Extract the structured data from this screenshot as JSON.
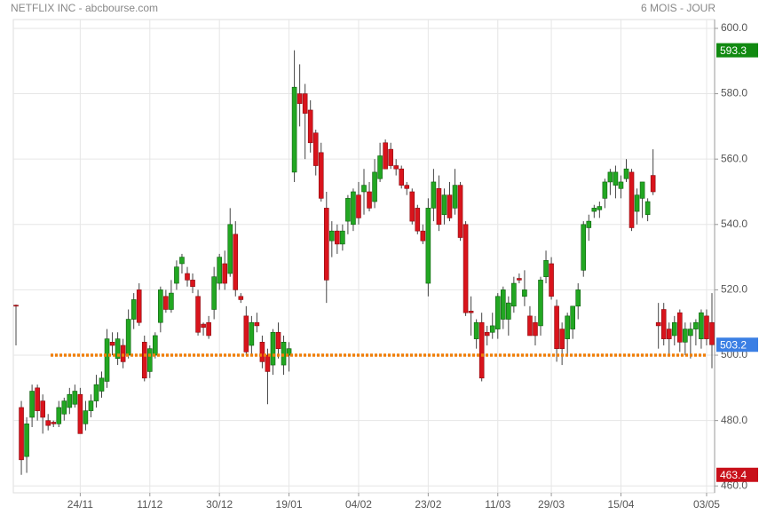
{
  "chart_data": {
    "type": "candlestick",
    "title": "NETFLIX INC - abcbourse.com",
    "subtitle": "6 MOIS - JOUR",
    "categories": [
      null,
      null,
      null,
      null,
      null,
      null,
      null,
      null,
      null,
      null,
      null,
      null,
      "24/11",
      null,
      null,
      null,
      null,
      null,
      null,
      null,
      null,
      null,
      null,
      null,
      null,
      "11/12",
      null,
      null,
      null,
      null,
      null,
      null,
      null,
      null,
      null,
      null,
      null,
      null,
      "30/12",
      null,
      null,
      null,
      null,
      null,
      null,
      null,
      null,
      null,
      null,
      null,
      null,
      "19/01",
      null,
      null,
      null,
      null,
      null,
      null,
      null,
      null,
      null,
      null,
      null,
      null,
      "04/02",
      null,
      null,
      null,
      null,
      null,
      null,
      null,
      null,
      null,
      null,
      null,
      null,
      "23/02",
      null,
      null,
      null,
      null,
      null,
      null,
      null,
      null,
      null,
      null,
      null,
      null,
      "11/03",
      null,
      null,
      null,
      null,
      null,
      null,
      null,
      null,
      null,
      "29/03",
      null,
      null,
      null,
      null,
      null,
      null,
      null,
      null,
      null,
      null,
      null,
      null,
      "15/04",
      null,
      null,
      null,
      null,
      null,
      null,
      null,
      null,
      null,
      null,
      null,
      null,
      null,
      null,
      null,
      "03/05",
      null
    ],
    "open": [
      515.3,
      484,
      469,
      481,
      490,
      486,
      480,
      479.5,
      479,
      482,
      484,
      485,
      488,
      479,
      483,
      486,
      489,
      492,
      504,
      499,
      503,
      500,
      511,
      520,
      504,
      495,
      500,
      510,
      518,
      514,
      522,
      528,
      525,
      523,
      518,
      509.5,
      510,
      514,
      522,
      528,
      525,
      537,
      518,
      512,
      503,
      510,
      504,
      500,
      497,
      507,
      497,
      500,
      556,
      580,
      580,
      575,
      568,
      562,
      545,
      535,
      538,
      534,
      541,
      540,
      549,
      550,
      550,
      547,
      554,
      565,
      563,
      558,
      557,
      552,
      550,
      545,
      538,
      522,
      545,
      551,
      543,
      549,
      545,
      552,
      540,
      513.5,
      505,
      510,
      507,
      507,
      508,
      511,
      511,
      515,
      523.5,
      518,
      512,
      510,
      509,
      524,
      528,
      515,
      508,
      505,
      508,
      515,
      526,
      539,
      544,
      544.5,
      548,
      553,
      552,
      551,
      554,
      556,
      544,
      548,
      543,
      555,
      510,
      514,
      508,
      506,
      513,
      504,
      506,
      508,
      505,
      512,
      510
    ],
    "high": [
      515.5,
      486,
      481,
      491,
      491,
      488,
      482,
      480,
      486,
      487,
      490,
      491,
      490,
      486,
      488,
      494,
      495,
      508,
      507,
      507,
      505,
      514,
      519,
      522,
      506,
      503,
      507,
      521,
      520,
      523,
      529,
      531,
      527,
      525,
      520,
      510,
      512,
      527,
      531,
      532,
      545,
      541,
      519,
      515,
      512,
      513,
      506,
      502,
      508,
      510,
      506,
      504,
      593.3,
      589,
      583,
      578,
      569,
      565,
      550,
      541,
      540,
      540,
      549,
      551,
      553,
      557,
      553,
      560,
      565,
      566,
      565,
      560,
      558,
      553,
      551,
      546,
      540,
      548,
      557,
      555,
      551,
      553,
      557,
      553,
      541,
      518,
      511,
      513,
      509,
      513,
      519,
      521,
      518,
      524,
      525,
      526,
      515,
      512,
      524,
      532,
      530,
      517,
      510,
      513,
      515,
      522,
      541,
      543,
      546,
      547,
      554,
      557,
      558,
      555,
      560,
      557,
      551,
      553,
      548,
      563,
      516,
      516,
      510,
      512,
      514,
      510,
      510,
      511,
      514,
      514,
      519
    ],
    "low": [
      503,
      463.4,
      464,
      478,
      480,
      476,
      477,
      478,
      478,
      480,
      482,
      484,
      476,
      477,
      481,
      484,
      487,
      490,
      500,
      497,
      496,
      499,
      508,
      509,
      492,
      493,
      499,
      507,
      513,
      513,
      520,
      525,
      521,
      519,
      506,
      506,
      505,
      511,
      520,
      520,
      524,
      518,
      516,
      500,
      500,
      507,
      496,
      485,
      494,
      499,
      494,
      495,
      553,
      570,
      560,
      562,
      555,
      547,
      516,
      530,
      531,
      532,
      537,
      538,
      540,
      543,
      544,
      545,
      553,
      557,
      557,
      555,
      551,
      549,
      540,
      537,
      534,
      518,
      541,
      538,
      540,
      541,
      543,
      535,
      512,
      506,
      502,
      492,
      503,
      505,
      505,
      508,
      506,
      513,
      522,
      515,
      506,
      503,
      506,
      522,
      517,
      498,
      497,
      500,
      505,
      511,
      524,
      535,
      542,
      542,
      545,
      549,
      548,
      548,
      553,
      538,
      540,
      542,
      541,
      549,
      502,
      503,
      500,
      503,
      501,
      500,
      499,
      503,
      502,
      503,
      496
    ],
    "close": [
      515,
      468,
      479,
      489,
      483,
      481,
      478.5,
      479,
      484,
      486,
      488,
      489,
      476,
      483,
      486,
      491,
      493,
      505,
      503,
      505,
      498,
      511,
      517,
      510,
      493,
      502,
      506,
      520,
      514,
      519,
      527,
      530,
      523,
      521,
      507,
      508.5,
      506,
      524,
      530,
      522,
      540,
      520,
      517,
      501,
      510,
      509,
      498,
      495,
      507,
      502,
      504,
      502,
      582,
      577,
      574,
      565,
      558,
      548,
      523,
      538,
      534,
      538,
      548,
      550,
      542,
      552,
      545,
      556,
      561,
      557,
      558,
      557,
      552,
      551,
      541,
      538,
      535,
      545,
      553,
      540,
      549,
      542,
      552,
      536,
      513,
      513,
      510,
      493,
      506,
      509,
      518,
      520,
      516,
      522,
      523,
      520,
      506,
      506,
      523,
      529,
      518,
      502,
      502,
      512,
      515,
      520,
      540,
      541,
      545,
      545.5,
      553,
      556,
      556,
      553,
      557,
      539,
      549,
      553,
      547,
      550,
      509,
      505,
      505,
      510,
      504,
      508,
      508,
      510,
      513,
      505,
      503.2
    ],
    "up_color": "#22a722",
    "down_color": "#d9141c",
    "ylim": [
      457.9,
      602.7
    ],
    "yticks": [
      {
        "value": 460,
        "label": "460.0"
      },
      {
        "value": 480,
        "label": "480.0"
      },
      {
        "value": 500,
        "label": "500.0"
      },
      {
        "value": 520,
        "label": "520.0"
      },
      {
        "value": 540,
        "label": "540.0"
      },
      {
        "value": 560,
        "label": "560.0"
      },
      {
        "value": 580,
        "label": "580.0"
      },
      {
        "value": 600,
        "label": "600.0"
      }
    ],
    "grid": true,
    "reference_line": {
      "value": 500,
      "color": "#f07f09"
    },
    "badges": [
      {
        "value": 593.3,
        "color": "#118a11"
      },
      {
        "value": 503.2,
        "color": "#3b7fe4"
      },
      {
        "value": 463.4,
        "color": "#c8101a"
      }
    ]
  }
}
